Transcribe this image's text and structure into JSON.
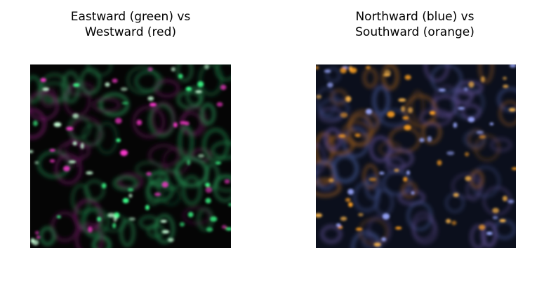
{
  "panels": [
    {
      "title_lines": [
        "Eastward (green) vs",
        "Westward (red)"
      ]
    },
    {
      "title_lines": [
        "Northward (blue) vs",
        "Southward (orange)"
      ]
    }
  ]
}
